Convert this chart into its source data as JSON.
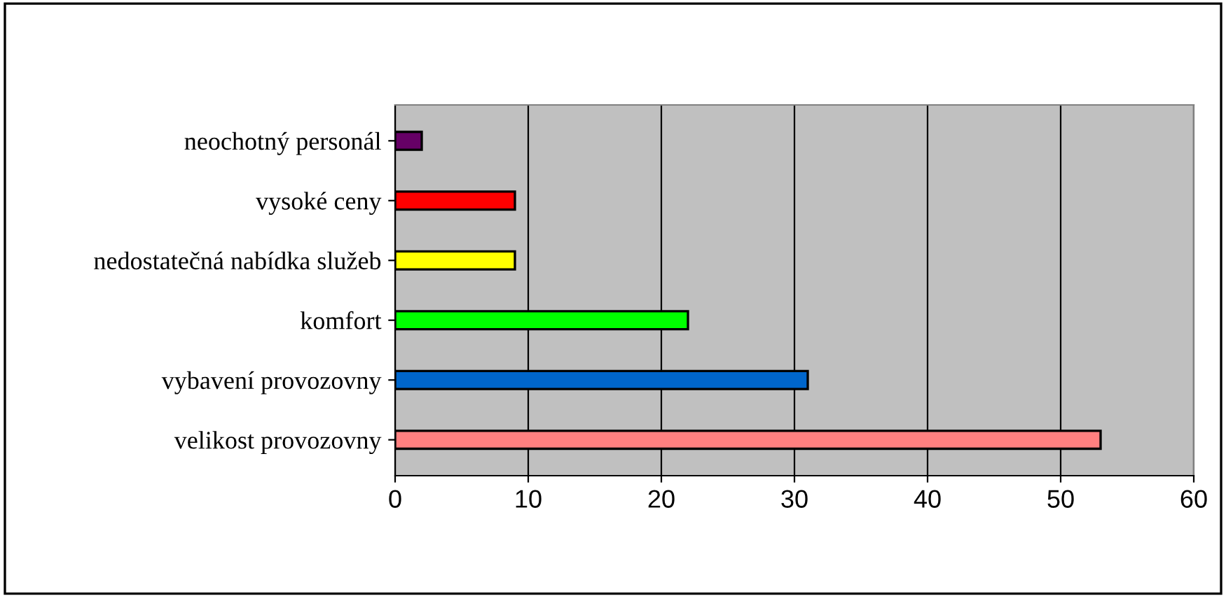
{
  "chart_data": {
    "type": "bar",
    "orientation": "horizontal",
    "categories": [
      "neochotný personál",
      "vysoké ceny",
      "nedostatečná nabídka služeb",
      "komfort",
      "vybavení provozovny",
      "velikost provozovny"
    ],
    "values": [
      2,
      9,
      9,
      22,
      31,
      53
    ],
    "colors": [
      "#660066",
      "#ff0000",
      "#ffff00",
      "#00ff00",
      "#0066cc",
      "#ff8080"
    ],
    "xlim": [
      0,
      60
    ],
    "xticks": [
      0,
      10,
      20,
      30,
      40,
      50,
      60
    ],
    "grid": "x",
    "legend": false
  }
}
